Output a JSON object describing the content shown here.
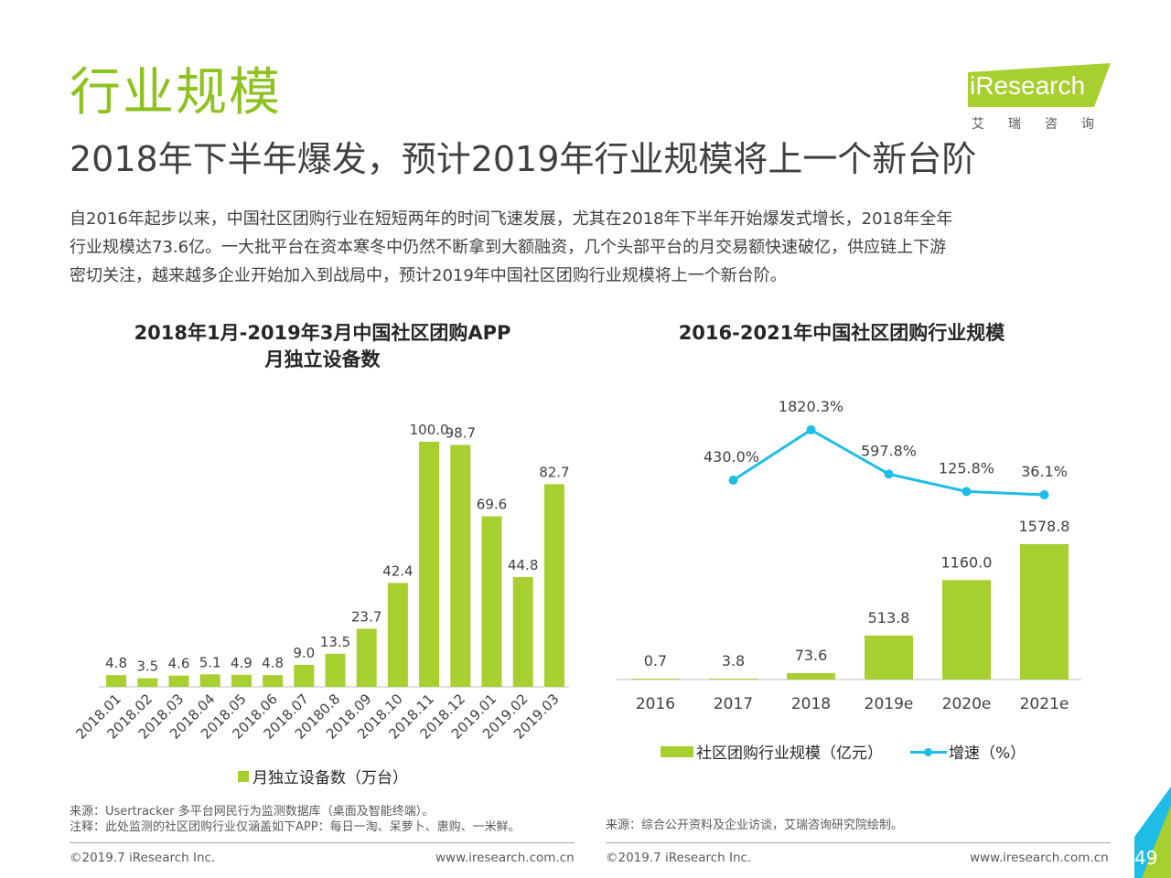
{
  "header": {
    "title": "行业规模",
    "subtitle": "2018年下半年爆发，预计2019年行业规模将上一个新台阶",
    "intro_lines": [
      "自2016年起步以来，中国社区团购行业在短短两年的时间飞速发展，尤其在2018年下半年开始爆发式增长，2018年全年",
      "行业规模达73.6亿。一大批平台在资本寒冬中仍然不断拿到大额融资，几个头部平台的月交易额快速破亿，供应链上下游",
      "密切关注，越来越多企业开始加入到战局中，预计2019年中国社区团购行业规模将上一个新台阶。"
    ]
  },
  "logo": {
    "name": "iResearch",
    "subtitle": "艾瑞咨询"
  },
  "colors": {
    "accent_green": "#8dc21f",
    "bar_green": "#a6cf2f",
    "line_blue": "#1fbce8"
  },
  "chart_data": [
    {
      "type": "bar",
      "title_line1": "2018年1月-2019年3月中国社区团购APP",
      "title_line2": "月独立设备数",
      "categories": [
        "2018.01",
        "2018.02",
        "2018.03",
        "2018.04",
        "2018.05",
        "2018.06",
        "2018.07",
        "20180.8",
        "2018.09",
        "2018.10",
        "2018.11",
        "2018.12",
        "2019.01",
        "2019.02",
        "2019.03"
      ],
      "series": [
        {
          "name": "月独立设备数（万台）",
          "values": [
            4.8,
            3.5,
            4.6,
            5.1,
            4.9,
            4.8,
            9.0,
            13.5,
            23.7,
            42.4,
            100.0,
            98.7,
            69.6,
            44.8,
            82.7
          ]
        }
      ],
      "value_labels": [
        "4.8",
        "3.5",
        "4.6",
        "5.1",
        "4.9",
        "4.8",
        "9.0",
        "13.5",
        "23.7",
        "42.4",
        "100.0",
        "98.7",
        "69.6",
        "44.8",
        "82.7"
      ],
      "ylim": [
        0,
        100
      ],
      "legend": "月独立设备数（万台）"
    },
    {
      "type": "bar+line",
      "title": "2016-2021年中国社区团购行业规模",
      "categories": [
        "2016",
        "2017",
        "2018",
        "2019e",
        "2020e",
        "2021e"
      ],
      "bars": {
        "name": "社区团购行业规模（亿元）",
        "values": [
          0.7,
          3.8,
          73.6,
          513.8,
          1160.0,
          1578.8
        ],
        "labels": [
          "0.7",
          "3.8",
          "73.6",
          "513.8",
          "1160.0",
          "1578.8"
        ]
      },
      "line": {
        "name": "增速（%）",
        "values": [
          null,
          430.0,
          1820.3,
          597.8,
          125.8,
          36.1
        ],
        "labels": [
          "",
          "430.0%",
          "1820.3%",
          "597.8%",
          "125.8%",
          "36.1%"
        ]
      },
      "legend_bar": "社区团购行业规模（亿元）",
      "legend_line": "增速（%）"
    }
  ],
  "notes": {
    "left_source": "来源：Usertracker 多平台网民行为监测数据库（桌面及智能终端）。",
    "left_note": "注释：此处监测的社区团购行业仅涵盖如下APP：每日一淘、呆萝卜、惠购、一米鲜。",
    "right_source": "来源：综合公开资料及企业访谈，艾瑞咨询研究院绘制。"
  },
  "footer": {
    "left_copyright": "©2019.7 iResearch Inc.",
    "left_url": "www.iresearch.com.cn",
    "right_copyright": "©2019.7 iResearch Inc.",
    "right_url": "www.iresearch.com.cn",
    "page_number": "49"
  }
}
